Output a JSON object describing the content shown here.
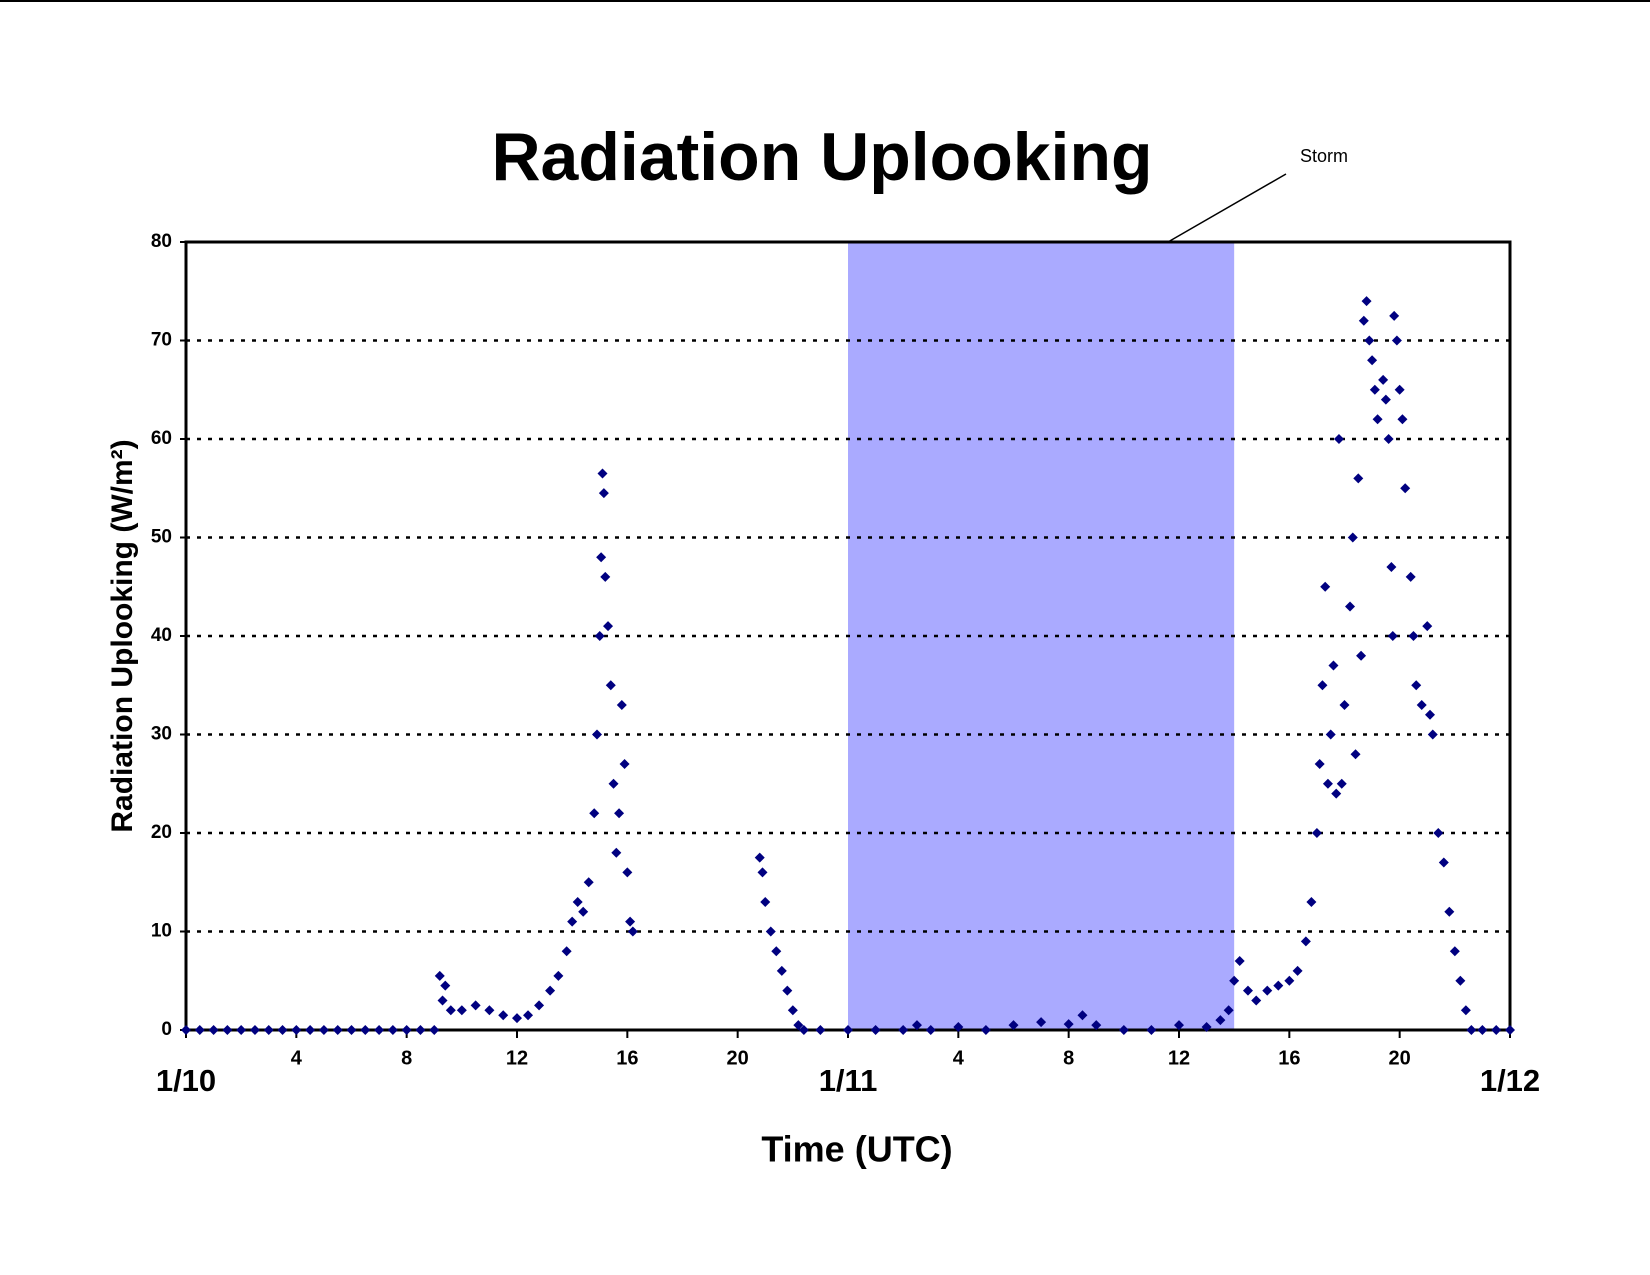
{
  "chart_data": {
    "type": "scatter",
    "title": "Radiation Uplooking",
    "x_label": "Time (UTC)",
    "y_label": "Radiation Uplooking (W/m²)",
    "annotation": "Storm",
    "shade": [
      24,
      38
    ],
    "shade_color": "#aaaaff",
    "color": "#000080",
    "xlim": [
      0,
      48
    ],
    "xticks": [
      {
        "value": 0,
        "label": "1/10"
      },
      4,
      8,
      12,
      16,
      20,
      {
        "value": 24,
        "label": "1/11"
      },
      {
        "value": 28,
        "label": "4"
      },
      {
        "value": 32,
        "label": "8"
      },
      {
        "value": 36,
        "label": "12"
      },
      {
        "value": 40,
        "label": "16"
      },
      {
        "value": 44,
        "label": "20"
      },
      {
        "value": 48,
        "label": "1/12"
      }
    ],
    "ylim": [
      0,
      80
    ],
    "yticks": [
      0,
      10,
      20,
      30,
      40,
      50,
      60,
      70,
      80
    ],
    "grid": true,
    "x": [
      0,
      0.5,
      1,
      1.5,
      2,
      2.5,
      3,
      3.5,
      4,
      4.5,
      5,
      5.5,
      6,
      6.5,
      7,
      7.5,
      8,
      8.5,
      9,
      9.2,
      9.3,
      9.4,
      9.6,
      10,
      10.5,
      11,
      11.5,
      12,
      12.4,
      12.8,
      13.2,
      13.5,
      13.8,
      14,
      14.2,
      14.4,
      14.6,
      14.8,
      14.9,
      15,
      15.05,
      15.1,
      15.15,
      15.2,
      15.3,
      15.4,
      15.5,
      15.6,
      15.7,
      15.8,
      15.9,
      16,
      16.1,
      16.2,
      20.8,
      20.9,
      21,
      21.2,
      21.4,
      21.6,
      21.8,
      22,
      22.2,
      22.4,
      23,
      24,
      25,
      26,
      26.5,
      27,
      28,
      29,
      30,
      31,
      32,
      32.5,
      33,
      34,
      35,
      36,
      37,
      37.5,
      37.8,
      38,
      38.2,
      38.5,
      38.8,
      39.2,
      39.6,
      40,
      40.3,
      40.6,
      40.8,
      41,
      41.1,
      41.2,
      41.3,
      41.4,
      41.5,
      41.6,
      41.7,
      41.8,
      41.9,
      42,
      42.2,
      42.3,
      42.4,
      42.5,
      42.6,
      42.7,
      42.8,
      42.9,
      43,
      43.1,
      43.2,
      43.4,
      43.5,
      43.6,
      43.7,
      43.75,
      43.8,
      43.9,
      44,
      44.1,
      44.2,
      44.4,
      44.5,
      44.6,
      44.8,
      45,
      45.1,
      45.2,
      45.4,
      45.6,
      45.8,
      46,
      46.2,
      46.4,
      46.6,
      47,
      47.5,
      48
    ],
    "values": [
      0,
      0,
      0,
      0,
      0,
      0,
      0,
      0,
      0,
      0,
      0,
      0,
      0,
      0,
      0,
      0,
      0,
      0,
      0,
      5.5,
      3,
      4.5,
      2,
      2,
      2.5,
      2,
      1.5,
      1.2,
      1.5,
      2.5,
      4,
      5.5,
      8,
      11,
      13,
      12,
      15,
      22,
      30,
      40,
      48,
      56.5,
      54.5,
      46,
      41,
      35,
      25,
      18,
      22,
      33,
      27,
      16,
      11,
      10,
      17.5,
      16,
      13,
      10,
      8,
      6,
      4,
      2,
      0.5,
      0,
      0,
      0,
      0,
      0,
      0.5,
      0,
      0.3,
      0,
      0.5,
      0.8,
      0.6,
      1.5,
      0.5,
      0,
      0,
      0.5,
      0.3,
      1,
      2,
      5,
      7,
      4,
      3,
      4,
      4.5,
      5,
      6,
      9,
      13,
      20,
      27,
      35,
      45,
      25,
      30,
      37,
      24,
      60,
      25,
      33,
      43,
      50,
      28,
      56,
      38,
      72,
      74,
      70,
      68,
      65,
      62,
      66,
      64,
      60,
      47,
      40,
      72.5,
      70,
      65,
      62,
      55,
      46,
      40,
      35,
      33,
      41,
      32,
      30,
      20,
      17,
      12,
      8,
      5,
      2,
      0,
      0,
      0,
      0
    ]
  }
}
